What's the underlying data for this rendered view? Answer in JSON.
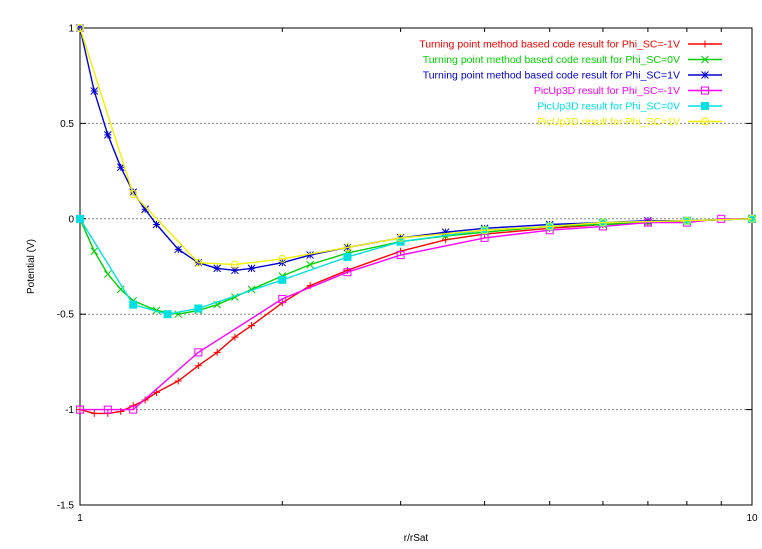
{
  "chart_data": {
    "type": "line",
    "title": "",
    "xlabel": "r/rSat",
    "ylabel": "Potential (V)",
    "xscale": "log",
    "xlim": [
      1,
      10
    ],
    "ylim": [
      -1.5,
      1
    ],
    "x_tick_labels": [
      {
        "value": 1,
        "label": "1"
      },
      {
        "value": 10,
        "label": "10"
      }
    ],
    "y_tick_labels": [
      {
        "value": 1,
        "label": "1"
      },
      {
        "value": 0.5,
        "label": "0.5"
      },
      {
        "value": 0,
        "label": "0"
      },
      {
        "value": -0.5,
        "label": "-0.5"
      },
      {
        "value": -1,
        "label": "-1"
      },
      {
        "value": -1.5,
        "label": "-1.5"
      }
    ],
    "grid": "horizontal dashed lines at y = 0.5, 0, -0.5, -1",
    "legend_position": "top-right",
    "series": [
      {
        "name": "Turning point method based code result for Phi_SC=-1V",
        "color": "#ff0000",
        "marker": "plus",
        "line": true,
        "x": [
          1.0,
          1.05,
          1.1,
          1.15,
          1.2,
          1.25,
          1.3,
          1.4,
          1.5,
          1.6,
          1.7,
          1.8,
          2.0,
          2.2,
          2.5,
          3.0,
          3.5,
          4.0,
          5.0,
          6.0,
          7.0,
          8.0,
          10.0
        ],
        "y": [
          -1.0,
          -1.02,
          -1.02,
          -1.01,
          -0.98,
          -0.95,
          -0.91,
          -0.85,
          -0.77,
          -0.7,
          -0.62,
          -0.56,
          -0.44,
          -0.35,
          -0.27,
          -0.17,
          -0.11,
          -0.08,
          -0.05,
          -0.03,
          -0.02,
          -0.01,
          0.0
        ]
      },
      {
        "name": "Turning point method based code result for Phi_SC=0V",
        "color": "#00d000",
        "marker": "cross",
        "line": true,
        "x": [
          1.0,
          1.05,
          1.1,
          1.15,
          1.2,
          1.3,
          1.4,
          1.5,
          1.6,
          1.7,
          1.8,
          2.0,
          2.2,
          2.5,
          3.0,
          3.5,
          4.0,
          5.0,
          6.0,
          7.0,
          8.0,
          10.0
        ],
        "y": [
          0.0,
          -0.17,
          -0.29,
          -0.37,
          -0.43,
          -0.48,
          -0.5,
          -0.48,
          -0.45,
          -0.41,
          -0.37,
          -0.3,
          -0.24,
          -0.18,
          -0.12,
          -0.09,
          -0.07,
          -0.04,
          -0.03,
          -0.02,
          -0.01,
          0.0
        ]
      },
      {
        "name": "Turning point method based code result for Phi_SC=1V",
        "color": "#0000d0",
        "marker": "star",
        "line": true,
        "x": [
          1.0,
          1.05,
          1.1,
          1.15,
          1.2,
          1.25,
          1.3,
          1.4,
          1.5,
          1.6,
          1.7,
          1.8,
          2.0,
          2.2,
          2.5,
          3.0,
          3.5,
          4.0,
          5.0,
          6.0,
          7.0,
          8.0,
          10.0
        ],
        "y": [
          1.0,
          0.67,
          0.44,
          0.27,
          0.14,
          0.05,
          -0.03,
          -0.16,
          -0.23,
          -0.26,
          -0.27,
          -0.26,
          -0.23,
          -0.19,
          -0.15,
          -0.1,
          -0.07,
          -0.05,
          -0.03,
          -0.02,
          -0.01,
          -0.01,
          0.0
        ]
      },
      {
        "name": "PicUp3D result for Phi_SC=-1V",
        "color": "#ff00ff",
        "marker": "open-square",
        "line": true,
        "x": [
          1.0,
          1.1,
          1.2,
          1.5,
          2.0,
          2.5,
          3.0,
          4.0,
          5.0,
          6.0,
          7.0,
          8.0,
          9.0,
          10.0
        ],
        "y": [
          -1.0,
          -1.0,
          -1.0,
          -0.7,
          -0.42,
          -0.28,
          -0.19,
          -0.1,
          -0.06,
          -0.04,
          -0.02,
          -0.02,
          0.0,
          0.0
        ]
      },
      {
        "name": "PicUp3D result for Phi_SC=0V",
        "color": "#00e0e0",
        "marker": "filled-square",
        "line": true,
        "x": [
          1.0,
          1.2,
          1.35,
          1.5,
          2.0,
          2.5,
          3.0,
          4.0,
          5.0,
          6.0,
          8.0,
          10.0
        ],
        "y": [
          0.0,
          -0.45,
          -0.5,
          -0.47,
          -0.32,
          -0.2,
          -0.12,
          -0.06,
          -0.04,
          -0.02,
          -0.01,
          0.0
        ]
      },
      {
        "name": "PicUp3D result for Phi_SC=1V",
        "color": "#f0f000",
        "marker": "open-circle",
        "line": true,
        "x": [
          1.0,
          1.2,
          1.5,
          1.7,
          2.0,
          2.5,
          3.0,
          4.0,
          5.0,
          6.0,
          8.0,
          10.0
        ],
        "y": [
          1.0,
          0.13,
          -0.23,
          -0.24,
          -0.21,
          -0.15,
          -0.1,
          -0.06,
          -0.04,
          -0.02,
          -0.01,
          0.0
        ]
      }
    ]
  }
}
